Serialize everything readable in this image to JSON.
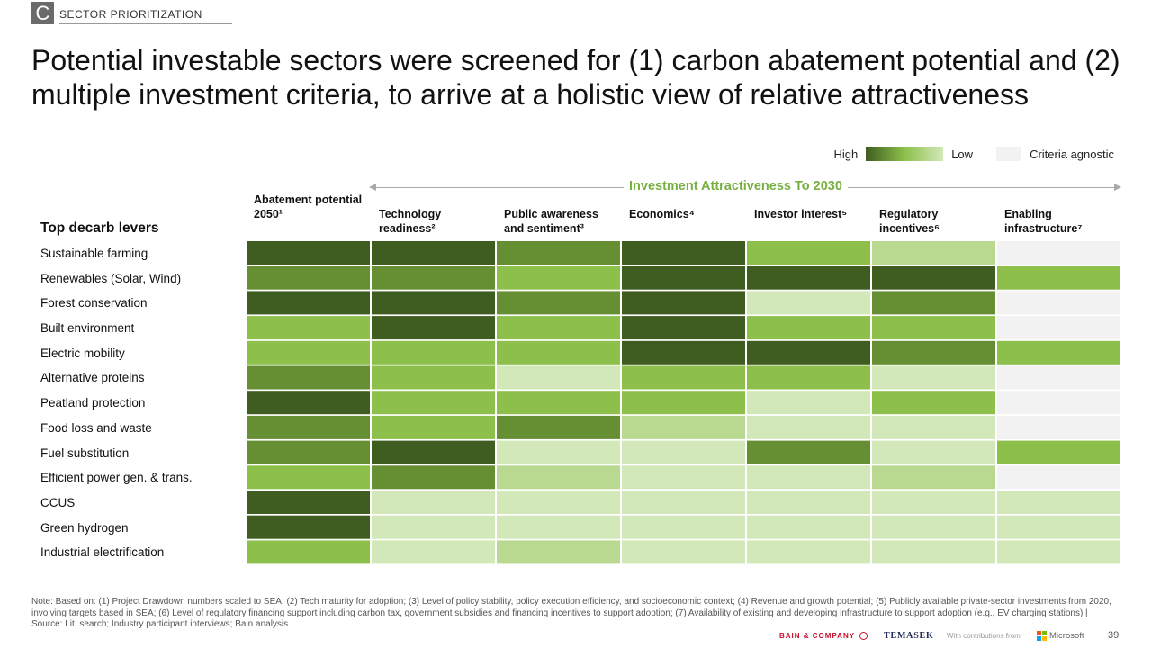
{
  "section": {
    "letter": "C",
    "label": "SECTOR PRIORITIZATION"
  },
  "title": "Potential investable sectors were screened for (1) carbon abatement potential and (2) multiple investment criteria, to arrive at a holistic view of relative attractiveness",
  "legend": {
    "high": "High",
    "low": "Low",
    "agnostic": "Criteria agnostic"
  },
  "arrow_label": "Investment Attractiveness To 2030",
  "levers_heading": "Top decarb levers",
  "columns": [
    {
      "label": "Abatement potential 2050¹"
    },
    {
      "label": "Technology readiness²"
    },
    {
      "label": "Public awareness and sentiment³"
    },
    {
      "label": "Economics⁴"
    },
    {
      "label": "Investor interest⁵"
    },
    {
      "label": "Regulatory incentives⁶"
    },
    {
      "label": "Enabling infrastructure⁷"
    }
  ],
  "colors": {
    "level_4": "#3f5c21",
    "level_3": "#668f34",
    "level_2": "#8cc04b",
    "level_1": "#b9d890",
    "level_0": "#d3e8b8",
    "agnostic": "#f2f2f2"
  },
  "rows": [
    {
      "label": "Sustainable farming",
      "values": [
        4,
        4,
        3,
        4,
        2,
        1,
        -1
      ]
    },
    {
      "label": "Renewables (Solar, Wind)",
      "values": [
        3,
        3,
        2,
        4,
        4,
        4,
        2
      ]
    },
    {
      "label": "Forest conservation",
      "values": [
        4,
        4,
        3,
        4,
        0,
        3,
        -1
      ]
    },
    {
      "label": "Built environment",
      "values": [
        2,
        4,
        2,
        4,
        2,
        2,
        -1
      ]
    },
    {
      "label": "Electric mobility",
      "values": [
        2,
        2,
        2,
        4,
        4,
        3,
        2
      ]
    },
    {
      "label": "Alternative proteins",
      "values": [
        3,
        2,
        0,
        2,
        2,
        0,
        -1
      ]
    },
    {
      "label": "Peatland protection",
      "values": [
        4,
        2,
        2,
        2,
        0,
        2,
        -1
      ]
    },
    {
      "label": "Food loss and waste",
      "values": [
        3,
        2,
        3,
        1,
        0,
        0,
        -1
      ]
    },
    {
      "label": "Fuel substitution",
      "values": [
        3,
        4,
        0,
        0,
        3,
        0,
        2
      ]
    },
    {
      "label": "Efficient power gen. & trans.",
      "values": [
        2,
        3,
        1,
        0,
        0,
        1,
        -1
      ]
    },
    {
      "label": "CCUS",
      "values": [
        4,
        0,
        0,
        0,
        0,
        0,
        0
      ]
    },
    {
      "label": "Green hydrogen",
      "values": [
        4,
        0,
        0,
        0,
        0,
        0,
        0
      ]
    },
    {
      "label": "Industrial electrification",
      "values": [
        2,
        0,
        1,
        0,
        0,
        0,
        0
      ]
    }
  ],
  "note": "Note: Based on: (1) Project Drawdown numbers scaled to SEA; (2) Tech maturity for adoption; (3) Level of policy stability, policy execution efficiency, and socioeconomic context; (4) Revenue and growth potential; (5) Publicly available private-sector investments from 2020, involving targets based in SEA; (6) Level of regulatory financing support including carbon tax, government subsidies and financing incentives to support adoption; (7) Availability of existing and developing infrastructure to support adoption (e.g., EV charging stations) | Source: Lit. search; Industry participant interviews; Bain analysis",
  "footer": {
    "bain": "BAIN & COMPANY",
    "temasek": "TEMASEK",
    "contrib": "With contributions from",
    "microsoft": "Microsoft",
    "page": "39"
  }
}
